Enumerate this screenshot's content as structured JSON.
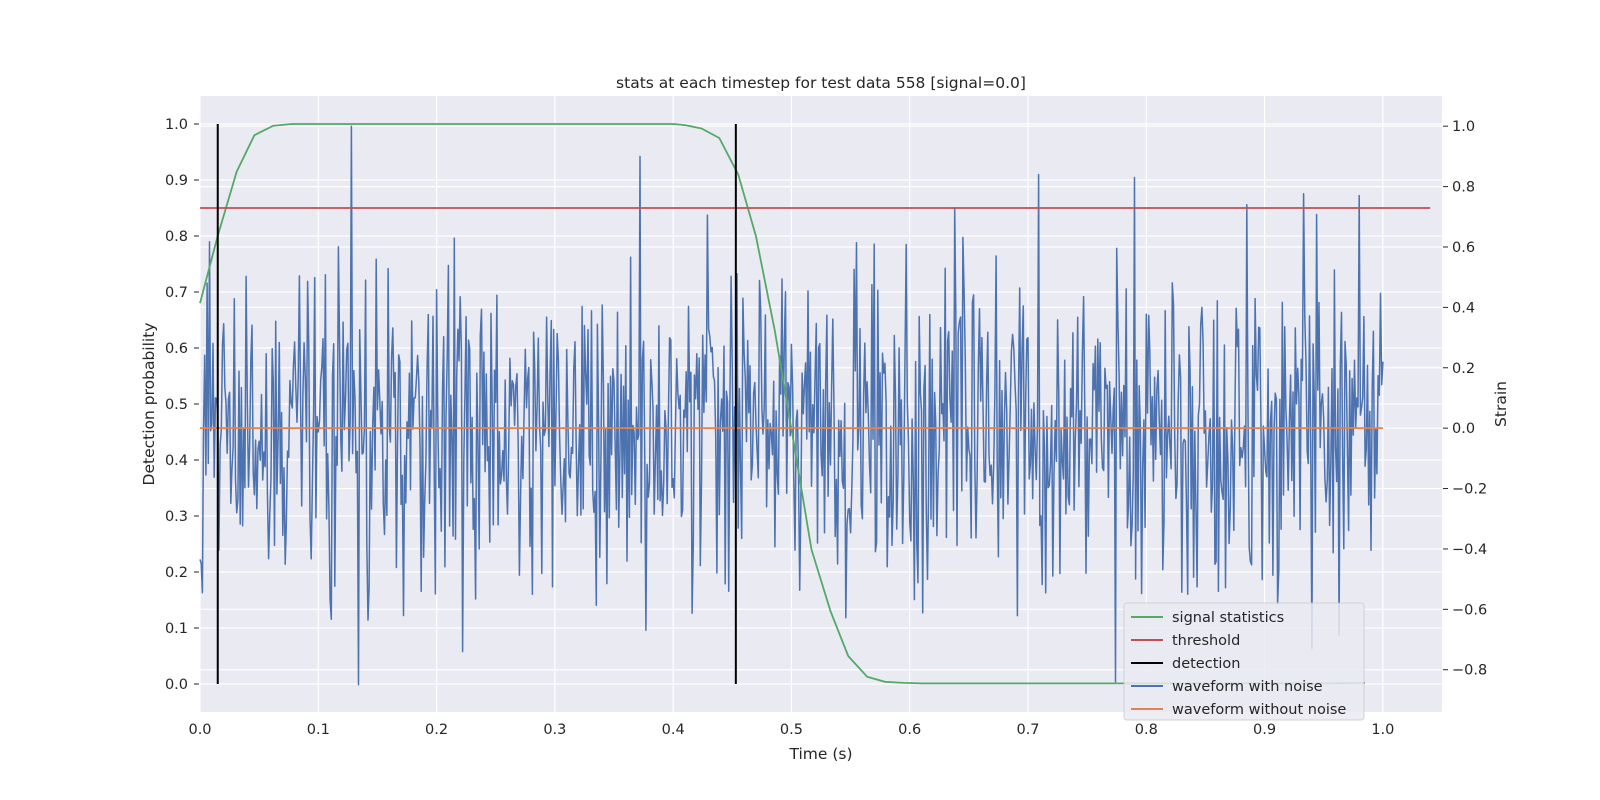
{
  "chart_data": {
    "type": "line",
    "title": "stats at each timestep for test data 558 [signal=0.0]",
    "xlabel": "Time (s)",
    "ylabel": "Detection probability",
    "ylabel_right": "Strain",
    "xlim": [
      0.0,
      1.05
    ],
    "ylim": [
      -0.05,
      1.05
    ],
    "ylim_right": [
      -0.94,
      1.1
    ],
    "x_ticks": [
      "0.0",
      "0.1",
      "0.2",
      "0.3",
      "0.4",
      "0.5",
      "0.6",
      "0.7",
      "0.8",
      "0.9",
      "1.0"
    ],
    "y_ticks": [
      "0.0",
      "0.1",
      "0.2",
      "0.3",
      "0.4",
      "0.5",
      "0.6",
      "0.7",
      "0.8",
      "0.9",
      "1.0"
    ],
    "y_right_ticks": [
      "−0.8",
      "−0.6",
      "−0.4",
      "−0.2",
      "0.0",
      "0.2",
      "0.4",
      "0.6",
      "0.8",
      "1.0"
    ],
    "grid": true,
    "legend_position": "lower right",
    "series": [
      {
        "name": "signal statistics",
        "axis": "left",
        "color": "#55a868",
        "x": [
          0.0,
          0.015,
          0.031,
          0.046,
          0.062,
          0.078,
          0.1,
          0.2,
          0.3,
          0.4,
          0.41,
          0.424,
          0.439,
          0.455,
          0.47,
          0.486,
          0.502,
          0.517,
          0.533,
          0.548,
          0.564,
          0.579,
          0.595,
          0.61,
          0.625,
          0.7,
          0.8,
          0.85,
          0.9,
          0.95,
          0.985
        ],
        "y": [
          0.68,
          0.8,
          0.915,
          0.98,
          0.997,
          1.0,
          1.0,
          1.0,
          1.0,
          1.0,
          0.998,
          0.992,
          0.975,
          0.91,
          0.8,
          0.63,
          0.43,
          0.24,
          0.13,
          0.05,
          0.013,
          0.004,
          0.002,
          0.001,
          0.001,
          0.001,
          0.001,
          0.001,
          0.001,
          0.001,
          0.002
        ]
      },
      {
        "name": "threshold",
        "axis": "left",
        "color": "#c44e52",
        "x": [
          0.0,
          1.04
        ],
        "y": [
          0.85,
          0.85
        ]
      },
      {
        "name": "detection",
        "axis": "left",
        "color": "#000000",
        "x_positions": [
          0.015,
          0.453
        ],
        "y_range": [
          0.0,
          1.0
        ]
      },
      {
        "name": "waveform with noise",
        "axis": "right",
        "color": "#4c72b0",
        "x_start": 0.0,
        "x_step": 0.001,
        "peaks": [
          {
            "x": 0.128,
            "y": 1.0
          },
          {
            "x": 0.134,
            "y": -0.85
          },
          {
            "x": 0.372,
            "y": 0.9
          },
          {
            "x": 0.709,
            "y": 0.84
          },
          {
            "x": 0.774,
            "y": -0.84
          },
          {
            "x": 0.79,
            "y": 0.83
          },
          {
            "x": 0.885,
            "y": 0.74
          },
          {
            "x": 0.94,
            "y": -0.73
          },
          {
            "x": 0.98,
            "y": 0.77
          }
        ],
        "y_spread": 0.27,
        "y_end": 0.22
      },
      {
        "name": "waveform without noise",
        "axis": "right",
        "color": "#dd8452",
        "x": [
          0.0,
          1.0
        ],
        "y": [
          0.0,
          0.0
        ]
      }
    ]
  }
}
